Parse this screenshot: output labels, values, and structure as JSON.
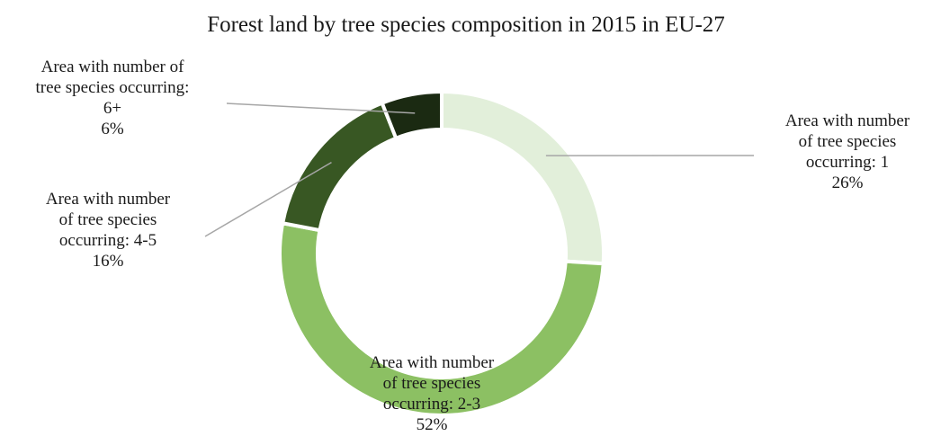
{
  "chart_data": {
    "type": "pie",
    "variant": "donut",
    "title": "Forest land by tree species composition in 2015 in EU-27",
    "start_angle_deg": 0,
    "direction": "clockwise",
    "slices": [
      {
        "label_lines": [
          "Area with number",
          "of tree species",
          "occurring: 1"
        ],
        "value": 26,
        "value_label": "26%",
        "color": "#e2efda"
      },
      {
        "label_lines": [
          "Area with number",
          "of tree species",
          "occurring: 2-3"
        ],
        "value": 52,
        "value_label": "52%",
        "color": "#8cc063"
      },
      {
        "label_lines": [
          "Area with number",
          "of tree species",
          "occurring: 4-5"
        ],
        "value": 16,
        "value_label": "16%",
        "color": "#385723"
      },
      {
        "label_lines": [
          "Area with number  of",
          "tree species occurring:",
          "6+"
        ],
        "value": 6,
        "value_label": "6%",
        "color": "#1b2a12"
      }
    ],
    "leader_line_color": "#a6a6a6",
    "separator_color": "#ffffff",
    "legend": "none"
  }
}
